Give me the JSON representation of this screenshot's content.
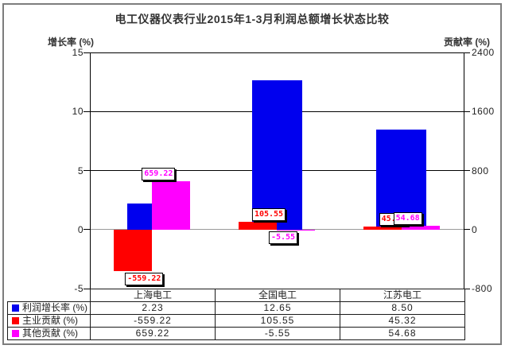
{
  "title": "电工仪器仪表行业2015年1-3月利润总额增长状态比较",
  "axes": {
    "left_label": "增长率 (%)",
    "right_label": "贡献率 (%)",
    "left_ticks": [
      "15",
      "10",
      "5",
      "0",
      "-5"
    ],
    "right_ticks": [
      "2400",
      "1600",
      "800",
      "0",
      "-800"
    ]
  },
  "colors": {
    "profit_growth": "#0000ee",
    "main_contrib": "#ff0000",
    "other_contrib": "#ff00ff",
    "frame": "#7d7d7d",
    "zero_line": "#9a9a9a"
  },
  "chart_data": {
    "type": "bar",
    "title": "电工仪器仪表行业2015年1-3月利润总额增长状态比较",
    "categories": [
      "上海电工",
      "全国电工",
      "江苏电工"
    ],
    "series": [
      {
        "name": "利润增长率 (%)",
        "axis": "left",
        "color": "#0000ee",
        "values": [
          2.23,
          12.65,
          8.5
        ]
      },
      {
        "name": "主业贡献 (%)",
        "axis": "right",
        "color": "#ff0000",
        "values": [
          -559.22,
          105.55,
          45.32
        ],
        "labels": [
          "-559.22",
          "105.55",
          "45.32"
        ]
      },
      {
        "name": "其他贡献 (%)",
        "axis": "right",
        "color": "#ff00ff",
        "values": [
          659.22,
          -5.55,
          54.68
        ],
        "labels": [
          "659.22",
          "-5.55",
          "54.68"
        ]
      }
    ],
    "left_axis": {
      "label": "增长率 (%)",
      "min": -5,
      "max": 15,
      "ticks": [
        15,
        10,
        5,
        0,
        -5
      ]
    },
    "right_axis": {
      "label": "贡献率 (%)",
      "min": -800,
      "max": 2400,
      "ticks": [
        2400,
        1600,
        800,
        0,
        -800
      ]
    },
    "grid": true,
    "legend_position": "table-below"
  },
  "table": {
    "headers": [
      "上海电工",
      "全国电工",
      "江苏电工"
    ],
    "rows": [
      {
        "label": "利润增长率 (%)",
        "swatch": "#0000ee",
        "values": [
          "2.23",
          "12.65",
          "8.50"
        ]
      },
      {
        "label": "主业贡献 (%)",
        "swatch": "#ff0000",
        "values": [
          "-559.22",
          "105.55",
          "45.32"
        ]
      },
      {
        "label": "其他贡献 (%)",
        "swatch": "#ff00ff",
        "values": [
          "659.22",
          "-5.55",
          "54.68"
        ]
      }
    ]
  }
}
